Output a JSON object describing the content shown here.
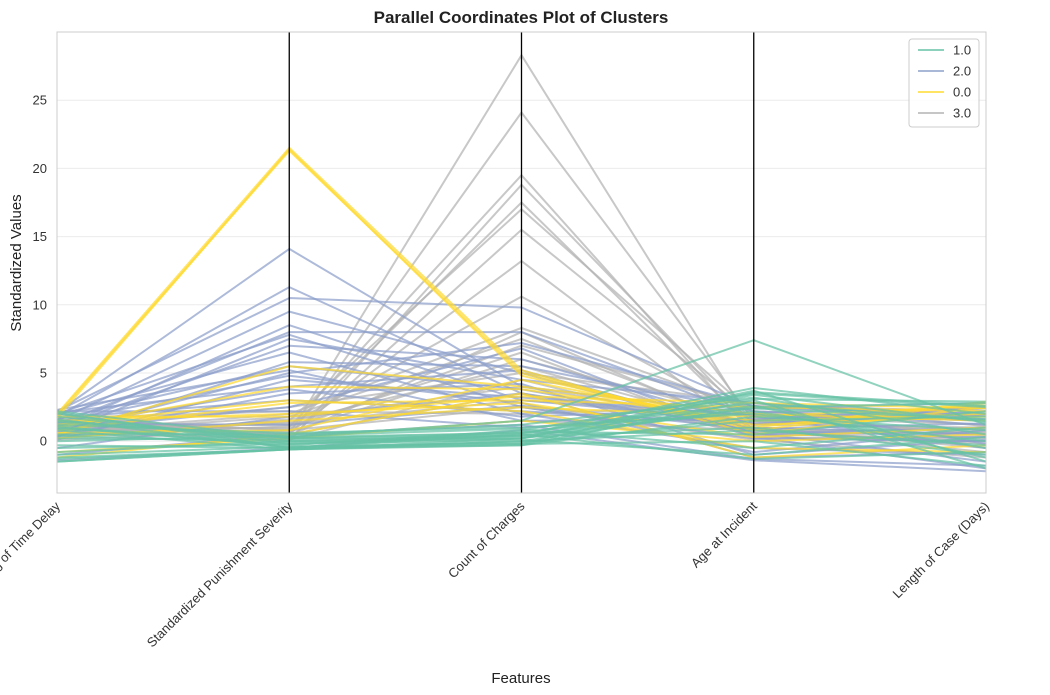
{
  "chart_data": {
    "type": "parallel_coordinates",
    "title": "Parallel Coordinates Plot of Clusters",
    "xlabel": "Features",
    "ylabel": "Standardized Values",
    "ylim": [
      -3.8,
      30
    ],
    "yticks": [
      0,
      5,
      10,
      15,
      20,
      25
    ],
    "features": [
      "Log of Time Delay",
      "Standardized Punishment Severity",
      "Count of Charges",
      "Age at Incident",
      "Length of Case (Days)"
    ],
    "legend": {
      "position": "top-right",
      "entries": [
        {
          "label": "1.0",
          "color": "#66c2a5"
        },
        {
          "label": "2.0",
          "color": "#8da0cb"
        },
        {
          "label": "0.0",
          "color": "#ffd92f"
        },
        {
          "label": "3.0",
          "color": "#b3b3b3"
        }
      ]
    },
    "series": [
      {
        "name": "3.0",
        "color": "#b3b3b3",
        "lines": [
          [
            1.5,
            0.5,
            28.3,
            1.0,
            0.5
          ],
          [
            1.2,
            0.3,
            24.1,
            1.5,
            0.8
          ],
          [
            0.8,
            1.0,
            19.5,
            0.5,
            0.2
          ],
          [
            1.0,
            0.0,
            18.8,
            1.2,
            1.0
          ],
          [
            1.6,
            0.8,
            17.5,
            0.8,
            -0.2
          ],
          [
            0.5,
            1.5,
            17.0,
            2.0,
            0.4
          ],
          [
            1.3,
            0.2,
            15.5,
            1.8,
            1.2
          ],
          [
            0.9,
            0.6,
            13.2,
            0.3,
            0.0
          ],
          [
            1.1,
            1.2,
            10.6,
            1.5,
            0.6
          ],
          [
            0.7,
            2.0,
            8.3,
            2.2,
            1.5
          ],
          [
            1.4,
            0.4,
            8.0,
            0.7,
            0.9
          ],
          [
            0.6,
            1.8,
            7.5,
            1.0,
            -0.5
          ],
          [
            1.2,
            0.9,
            7.0,
            2.5,
            1.8
          ],
          [
            0.3,
            1.1,
            6.5,
            0.2,
            0.3
          ],
          [
            1.8,
            0.7,
            6.0,
            1.6,
            2.0
          ],
          [
            0.4,
            1.4,
            5.5,
            0.9,
            -0.8
          ],
          [
            1.0,
            2.5,
            5.0,
            2.8,
            1.1
          ],
          [
            2.0,
            0.1,
            4.5,
            0.4,
            0.7
          ],
          [
            0.2,
            1.6,
            4.0,
            1.3,
            2.4
          ],
          [
            1.5,
            0.5,
            3.5,
            0.6,
            0.0
          ],
          [
            0.9,
            1.3,
            3.0,
            1.9,
            1.6
          ],
          [
            0.1,
            0.8,
            2.5,
            0.1,
            -1.2
          ],
          [
            1.7,
            2.2,
            2.0,
            2.6,
            2.2
          ],
          [
            0.5,
            0.3,
            1.5,
            0.8,
            0.5
          ]
        ]
      },
      {
        "name": "2.0",
        "color": "#8da0cb",
        "lines": [
          [
            2.1,
            14.1,
            4.0,
            2.0,
            1.5
          ],
          [
            1.8,
            11.3,
            3.5,
            1.0,
            0.5
          ],
          [
            2.2,
            10.5,
            9.8,
            2.5,
            2.0
          ],
          [
            1.5,
            9.5,
            5.0,
            0.5,
            1.0
          ],
          [
            0.9,
            8.5,
            3.0,
            1.5,
            2.5
          ],
          [
            1.2,
            8.0,
            8.0,
            1.8,
            -0.5
          ],
          [
            2.0,
            7.8,
            2.5,
            0.2,
            0.0
          ],
          [
            0.5,
            7.5,
            4.5,
            2.8,
            1.8
          ],
          [
            1.0,
            7.0,
            6.0,
            1.2,
            2.2
          ],
          [
            1.9,
            6.5,
            2.0,
            -0.5,
            -1.0
          ],
          [
            0.3,
            5.8,
            5.5,
            2.2,
            1.2
          ],
          [
            1.6,
            5.5,
            3.8,
            0.8,
            0.3
          ],
          [
            2.3,
            5.2,
            1.5,
            1.6,
            2.6
          ],
          [
            0.7,
            5.0,
            7.2,
            2.6,
            -0.2
          ],
          [
            1.4,
            4.8,
            2.8,
            -0.8,
            0.8
          ],
          [
            0.1,
            4.5,
            3.2,
            1.9,
            1.6
          ],
          [
            2.1,
            4.0,
            5.2,
            0.6,
            -1.5
          ],
          [
            1.1,
            3.8,
            1.8,
            2.4,
            2.8
          ],
          [
            0.4,
            3.5,
            4.2,
            -1.0,
            0.1
          ],
          [
            1.7,
            3.0,
            2.2,
            1.3,
            1.9
          ],
          [
            0.8,
            2.5,
            6.8,
            0.3,
            -2.0
          ],
          [
            2.2,
            2.2,
            1.0,
            2.1,
            2.4
          ],
          [
            -0.5,
            1.8,
            3.5,
            -1.2,
            -0.8
          ],
          [
            1.3,
            1.2,
            2.6,
            0.9,
            1.3
          ],
          [
            -1.0,
            0.5,
            1.2,
            -1.3,
            -1.8
          ],
          [
            -1.4,
            -0.5,
            0.8,
            -1.4,
            -2.2
          ]
        ]
      },
      {
        "name": "0.0",
        "color": "#ffd92f",
        "lines": [
          [
            2.0,
            21.5,
            5.2,
            0.5,
            2.5
          ],
          [
            1.9,
            21.3,
            5.0,
            0.8,
            2.8
          ],
          [
            1.7,
            21.4,
            4.8,
            1.0,
            2.9
          ],
          [
            0.5,
            5.5,
            4.0,
            2.0,
            1.5
          ],
          [
            1.0,
            4.0,
            3.8,
            1.5,
            2.0
          ],
          [
            -1.2,
            0.5,
            3.5,
            -1.2,
            -0.3
          ],
          [
            0.8,
            2.8,
            3.0,
            2.5,
            2.2
          ],
          [
            1.5,
            2.0,
            2.8,
            0.3,
            1.0
          ],
          [
            0.2,
            1.5,
            2.5,
            1.8,
            2.6
          ],
          [
            1.2,
            3.0,
            2.2,
            -0.5,
            -0.8
          ],
          [
            0.6,
            0.8,
            4.5,
            1.2,
            1.8
          ],
          [
            1.8,
            1.8,
            3.3,
            2.8,
            2.4
          ],
          [
            -0.8,
            0.2,
            1.5,
            0.0,
            0.5
          ]
        ]
      },
      {
        "name": "1.0",
        "color": "#66c2a5",
        "lines": [
          [
            1.5,
            0.3,
            1.5,
            7.4,
            1.2
          ],
          [
            2.1,
            -0.5,
            0.5,
            3.9,
            2.0
          ],
          [
            1.8,
            0.0,
            0.2,
            3.7,
            -1.5
          ],
          [
            1.0,
            -0.3,
            0.8,
            3.5,
            2.5
          ],
          [
            0.5,
            0.5,
            1.2,
            3.2,
            0.5
          ],
          [
            -1.5,
            -0.6,
            -0.3,
            3.0,
            -2.0
          ],
          [
            2.2,
            0.2,
            0.6,
            2.8,
            1.5
          ],
          [
            0.8,
            -0.6,
            0.0,
            2.5,
            2.8
          ],
          [
            -0.5,
            -0.2,
            0.4,
            2.2,
            -0.5
          ],
          [
            1.2,
            0.6,
            1.0,
            2.0,
            0.0
          ],
          [
            -1.0,
            -0.4,
            -0.1,
            1.5,
            1.8
          ],
          [
            0.2,
            0.1,
            0.3,
            1.0,
            -1.0
          ],
          [
            1.6,
            -0.5,
            0.7,
            0.5,
            2.2
          ],
          [
            -1.3,
            -0.6,
            -0.2,
            0.0,
            -1.8
          ],
          [
            0.0,
            0.4,
            0.9,
            -0.5,
            1.0
          ],
          [
            2.0,
            -0.2,
            0.1,
            -1.0,
            0.3
          ],
          [
            -0.8,
            0.0,
            0.5,
            -1.3,
            -0.8
          ],
          [
            1.1,
            -0.4,
            -0.2,
            3.6,
            2.6
          ],
          [
            -1.5,
            -0.6,
            0.2,
            3.4,
            1.4
          ],
          [
            0.9,
            0.2,
            0.4,
            2.6,
            -1.2
          ],
          [
            -0.3,
            -0.5,
            -0.3,
            1.8,
            0.8
          ],
          [
            1.4,
            0.3,
            0.6,
            3.1,
            2.9
          ],
          [
            -1.2,
            -0.6,
            0.0,
            0.8,
            -0.3
          ],
          [
            0.4,
            -0.1,
            0.2,
            2.4,
            1.6
          ]
        ]
      }
    ]
  }
}
